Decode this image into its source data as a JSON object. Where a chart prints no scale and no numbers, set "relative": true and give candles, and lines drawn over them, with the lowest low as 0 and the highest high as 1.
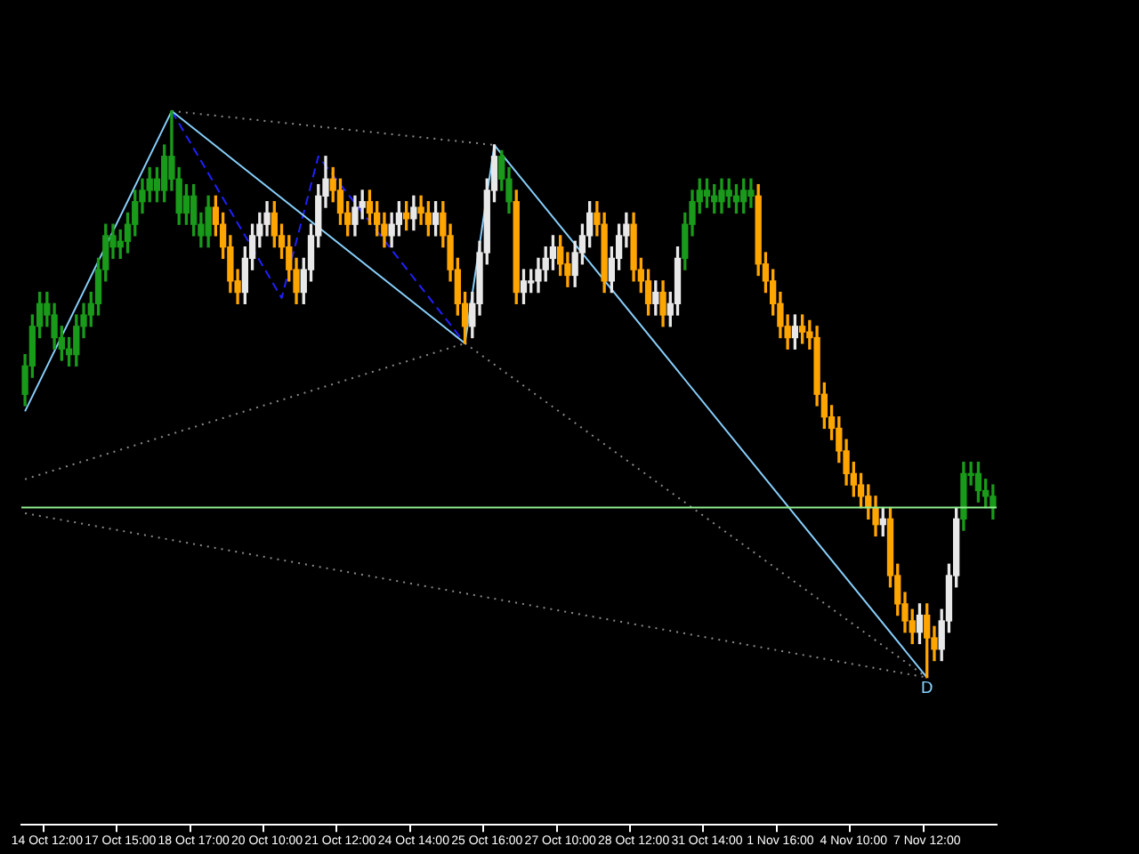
{
  "chart_data": {
    "type": "candlestick",
    "relative": true,
    "legend": false,
    "grid": false,
    "categories": [
      null,
      null,
      null,
      "14 Oct 12:00",
      null,
      null,
      null,
      null,
      null,
      null,
      null,
      null,
      null,
      "17 Oct 15:00",
      null,
      null,
      null,
      null,
      null,
      null,
      null,
      null,
      null,
      "18 Oct 17:00",
      null,
      null,
      null,
      null,
      null,
      null,
      null,
      null,
      null,
      "20 Oct 10:00",
      null,
      null,
      null,
      null,
      null,
      null,
      null,
      null,
      null,
      "21 Oct 12:00",
      null,
      null,
      null,
      null,
      null,
      null,
      null,
      null,
      null,
      "24 Oct 14:00",
      null,
      null,
      null,
      null,
      null,
      null,
      null,
      null,
      null,
      "25 Oct 16:00",
      null,
      null,
      null,
      null,
      null,
      null,
      null,
      null,
      null,
      "27 Oct 10:00",
      null,
      null,
      null,
      null,
      null,
      null,
      null,
      null,
      null,
      "28 Oct 12:00",
      null,
      null,
      null,
      null,
      null,
      null,
      null,
      null,
      null,
      "31 Oct 14:00",
      null,
      null,
      null,
      null,
      null,
      null,
      null,
      null,
      null,
      "1 Nov 16:00",
      null,
      null,
      null,
      null,
      null,
      null,
      null,
      null,
      null,
      "4 Nov 10:00",
      null,
      null,
      null,
      null,
      null,
      null,
      null,
      null,
      null,
      "7 Nov 12:00",
      null,
      null,
      null,
      null,
      null,
      null,
      null,
      null,
      null
    ],
    "ohlc": [
      [
        0.5,
        0.57,
        0.48,
        0.55
      ],
      [
        0.55,
        0.64,
        0.53,
        0.62
      ],
      [
        0.62,
        0.68,
        0.6,
        0.66
      ],
      [
        0.66,
        0.68,
        0.62,
        0.64
      ],
      [
        0.64,
        0.66,
        0.58,
        0.6
      ],
      [
        0.6,
        0.62,
        0.56,
        0.58
      ],
      [
        0.58,
        0.6,
        0.55,
        0.57
      ],
      [
        0.57,
        0.64,
        0.55,
        0.62
      ],
      [
        0.62,
        0.66,
        0.6,
        0.64
      ],
      [
        0.64,
        0.68,
        0.62,
        0.66
      ],
      [
        0.66,
        0.74,
        0.64,
        0.72
      ],
      [
        0.72,
        0.8,
        0.7,
        0.78
      ],
      [
        0.78,
        0.8,
        0.74,
        0.76
      ],
      [
        0.76,
        0.79,
        0.74,
        0.77
      ],
      [
        0.77,
        0.82,
        0.75,
        0.8
      ],
      [
        0.8,
        0.86,
        0.78,
        0.84
      ],
      [
        0.84,
        0.88,
        0.82,
        0.86
      ],
      [
        0.86,
        0.9,
        0.84,
        0.88
      ],
      [
        0.88,
        0.9,
        0.84,
        0.86
      ],
      [
        0.86,
        0.94,
        0.84,
        0.92
      ],
      [
        0.92,
        1.0,
        0.86,
        0.88
      ],
      [
        0.88,
        0.9,
        0.8,
        0.82
      ],
      [
        0.82,
        0.87,
        0.8,
        0.85
      ],
      [
        0.85,
        0.87,
        0.78,
        0.8
      ],
      [
        0.8,
        0.82,
        0.76,
        0.78
      ],
      [
        0.78,
        0.85,
        0.76,
        0.83
      ],
      [
        0.83,
        0.85,
        0.78,
        0.8
      ],
      [
        0.8,
        0.82,
        0.74,
        0.76
      ],
      [
        0.76,
        0.78,
        0.68,
        0.7
      ],
      [
        0.7,
        0.72,
        0.66,
        0.68
      ],
      [
        0.68,
        0.76,
        0.66,
        0.74
      ],
      [
        0.74,
        0.8,
        0.72,
        0.78
      ],
      [
        0.78,
        0.82,
        0.76,
        0.8
      ],
      [
        0.8,
        0.84,
        0.78,
        0.82
      ],
      [
        0.82,
        0.84,
        0.76,
        0.78
      ],
      [
        0.78,
        0.8,
        0.74,
        0.76
      ],
      [
        0.76,
        0.78,
        0.7,
        0.72
      ],
      [
        0.72,
        0.74,
        0.66,
        0.68
      ],
      [
        0.68,
        0.74,
        0.66,
        0.72
      ],
      [
        0.72,
        0.8,
        0.7,
        0.78
      ],
      [
        0.78,
        0.87,
        0.76,
        0.85
      ],
      [
        0.85,
        0.92,
        0.83,
        0.88
      ],
      [
        0.88,
        0.9,
        0.84,
        0.86
      ],
      [
        0.86,
        0.88,
        0.8,
        0.82
      ],
      [
        0.82,
        0.84,
        0.78,
        0.8
      ],
      [
        0.8,
        0.85,
        0.78,
        0.83
      ],
      [
        0.83,
        0.86,
        0.81,
        0.84
      ],
      [
        0.84,
        0.86,
        0.8,
        0.82
      ],
      [
        0.82,
        0.84,
        0.78,
        0.8
      ],
      [
        0.8,
        0.82,
        0.76,
        0.78
      ],
      [
        0.78,
        0.82,
        0.76,
        0.8
      ],
      [
        0.8,
        0.84,
        0.78,
        0.82
      ],
      [
        0.82,
        0.84,
        0.79,
        0.81
      ],
      [
        0.81,
        0.85,
        0.79,
        0.83
      ],
      [
        0.83,
        0.85,
        0.8,
        0.82
      ],
      [
        0.82,
        0.84,
        0.78,
        0.8
      ],
      [
        0.8,
        0.84,
        0.78,
        0.82
      ],
      [
        0.82,
        0.84,
        0.76,
        0.78
      ],
      [
        0.78,
        0.8,
        0.7,
        0.72
      ],
      [
        0.72,
        0.74,
        0.64,
        0.66
      ],
      [
        0.66,
        0.68,
        0.59,
        0.62
      ],
      [
        0.62,
        0.68,
        0.6,
        0.66
      ],
      [
        0.66,
        0.77,
        0.64,
        0.75
      ],
      [
        0.75,
        0.88,
        0.73,
        0.86
      ],
      [
        0.86,
        0.94,
        0.84,
        0.92
      ],
      [
        0.92,
        0.93,
        0.86,
        0.88
      ],
      [
        0.88,
        0.9,
        0.82,
        0.84
      ],
      [
        0.84,
        0.86,
        0.66,
        0.68
      ],
      [
        0.68,
        0.72,
        0.66,
        0.7
      ],
      [
        0.7,
        0.72,
        0.68,
        0.7
      ],
      [
        0.7,
        0.74,
        0.68,
        0.72
      ],
      [
        0.72,
        0.76,
        0.7,
        0.74
      ],
      [
        0.74,
        0.78,
        0.72,
        0.76
      ],
      [
        0.76,
        0.78,
        0.71,
        0.73
      ],
      [
        0.73,
        0.75,
        0.69,
        0.71
      ],
      [
        0.71,
        0.77,
        0.69,
        0.75
      ],
      [
        0.75,
        0.8,
        0.73,
        0.78
      ],
      [
        0.78,
        0.84,
        0.76,
        0.82
      ],
      [
        0.82,
        0.84,
        0.78,
        0.8
      ],
      [
        0.8,
        0.82,
        0.68,
        0.7
      ],
      [
        0.7,
        0.76,
        0.68,
        0.74
      ],
      [
        0.74,
        0.8,
        0.72,
        0.78
      ],
      [
        0.78,
        0.82,
        0.76,
        0.8
      ],
      [
        0.8,
        0.82,
        0.7,
        0.72
      ],
      [
        0.72,
        0.74,
        0.68,
        0.7
      ],
      [
        0.7,
        0.72,
        0.64,
        0.66
      ],
      [
        0.66,
        0.7,
        0.64,
        0.68
      ],
      [
        0.68,
        0.7,
        0.62,
        0.64
      ],
      [
        0.64,
        0.68,
        0.62,
        0.66
      ],
      [
        0.66,
        0.76,
        0.64,
        0.74
      ],
      [
        0.74,
        0.82,
        0.72,
        0.8
      ],
      [
        0.8,
        0.86,
        0.78,
        0.84
      ],
      [
        0.84,
        0.88,
        0.82,
        0.86
      ],
      [
        0.86,
        0.88,
        0.83,
        0.85
      ],
      [
        0.85,
        0.87,
        0.82,
        0.84
      ],
      [
        0.84,
        0.88,
        0.82,
        0.86
      ],
      [
        0.86,
        0.88,
        0.83,
        0.85
      ],
      [
        0.85,
        0.87,
        0.82,
        0.84
      ],
      [
        0.84,
        0.88,
        0.82,
        0.86
      ],
      [
        0.86,
        0.88,
        0.83,
        0.85
      ],
      [
        0.85,
        0.87,
        0.71,
        0.73
      ],
      [
        0.73,
        0.75,
        0.68,
        0.7
      ],
      [
        0.7,
        0.72,
        0.64,
        0.66
      ],
      [
        0.66,
        0.68,
        0.6,
        0.62
      ],
      [
        0.62,
        0.64,
        0.58,
        0.6
      ],
      [
        0.6,
        0.64,
        0.58,
        0.62
      ],
      [
        0.62,
        0.64,
        0.59,
        0.61
      ],
      [
        0.61,
        0.63,
        0.58,
        0.6
      ],
      [
        0.6,
        0.62,
        0.48,
        0.5
      ],
      [
        0.5,
        0.52,
        0.44,
        0.46
      ],
      [
        0.46,
        0.48,
        0.42,
        0.44
      ],
      [
        0.44,
        0.46,
        0.38,
        0.4
      ],
      [
        0.4,
        0.42,
        0.34,
        0.36
      ],
      [
        0.36,
        0.38,
        0.32,
        0.34
      ],
      [
        0.34,
        0.36,
        0.3,
        0.32
      ],
      [
        0.32,
        0.34,
        0.28,
        0.3
      ],
      [
        0.3,
        0.32,
        0.25,
        0.27
      ],
      [
        0.27,
        0.3,
        0.25,
        0.28
      ],
      [
        0.28,
        0.3,
        0.16,
        0.18
      ],
      [
        0.18,
        0.2,
        0.11,
        0.13
      ],
      [
        0.13,
        0.15,
        0.08,
        0.1
      ],
      [
        0.1,
        0.12,
        0.06,
        0.08
      ],
      [
        0.08,
        0.13,
        0.06,
        0.11
      ],
      [
        0.11,
        0.13,
        0.0,
        0.07
      ],
      [
        0.07,
        0.09,
        0.03,
        0.05
      ],
      [
        0.05,
        0.12,
        0.03,
        0.1
      ],
      [
        0.1,
        0.2,
        0.08,
        0.18
      ],
      [
        0.18,
        0.3,
        0.16,
        0.28
      ],
      [
        0.28,
        0.38,
        0.26,
        0.36
      ],
      [
        0.36,
        0.38,
        0.34,
        0.36
      ],
      [
        0.36,
        0.38,
        0.31,
        0.33
      ],
      [
        0.33,
        0.35,
        0.3,
        0.32
      ],
      [
        0.32,
        0.34,
        0.28,
        0.3
      ]
    ],
    "colors": [
      "#1a9a1a",
      "#1a9a1a",
      "#1a9a1a",
      "#1a9a1a",
      "#1a9a1a",
      "#1a9a1a",
      "#1a9a1a",
      "#1a9a1a",
      "#1a9a1a",
      "#1a9a1a",
      "#1a9a1a",
      "#1a9a1a",
      "#1a9a1a",
      "#1a9a1a",
      "#1a9a1a",
      "#1a9a1a",
      "#1a9a1a",
      "#1a9a1a",
      "#1a9a1a",
      "#1a9a1a",
      "#1a9a1a",
      "#1a9a1a",
      "#1a9a1a",
      "#1a9a1a",
      "#1a9a1a",
      "#1a9a1a",
      "#ffa500",
      "#ffa500",
      "#ffa500",
      "#ffa500",
      "#e8e8e8",
      "#e8e8e8",
      "#e8e8e8",
      "#e8e8e8",
      "#ffa500",
      "#ffa500",
      "#ffa500",
      "#ffa500",
      "#e8e8e8",
      "#e8e8e8",
      "#e8e8e8",
      "#e8e8e8",
      "#ffa500",
      "#ffa500",
      "#ffa500",
      "#e8e8e8",
      "#e8e8e8",
      "#ffa500",
      "#ffa500",
      "#ffa500",
      "#e8e8e8",
      "#e8e8e8",
      "#ffa500",
      "#e8e8e8",
      "#ffa500",
      "#ffa500",
      "#e8e8e8",
      "#ffa500",
      "#ffa500",
      "#ffa500",
      "#ffa500",
      "#e8e8e8",
      "#e8e8e8",
      "#e8e8e8",
      "#e8e8e8",
      "#1a9a1a",
      "#1a9a1a",
      "#ffa500",
      "#e8e8e8",
      "#e8e8e8",
      "#e8e8e8",
      "#e8e8e8",
      "#e8e8e8",
      "#ffa500",
      "#ffa500",
      "#e8e8e8",
      "#e8e8e8",
      "#e8e8e8",
      "#ffa500",
      "#ffa500",
      "#e8e8e8",
      "#e8e8e8",
      "#e8e8e8",
      "#ffa500",
      "#ffa500",
      "#ffa500",
      "#e8e8e8",
      "#ffa500",
      "#e8e8e8",
      "#e8e8e8",
      "#1a9a1a",
      "#1a9a1a",
      "#1a9a1a",
      "#1a9a1a",
      "#1a9a1a",
      "#1a9a1a",
      "#1a9a1a",
      "#1a9a1a",
      "#1a9a1a",
      "#1a9a1a",
      "#ffa500",
      "#ffa500",
      "#ffa500",
      "#ffa500",
      "#ffa500",
      "#e8e8e8",
      "#ffa500",
      "#ffa500",
      "#ffa500",
      "#ffa500",
      "#ffa500",
      "#ffa500",
      "#ffa500",
      "#ffa500",
      "#ffa500",
      "#ffa500",
      "#ffa500",
      "#e8e8e8",
      "#ffa500",
      "#ffa500",
      "#ffa500",
      "#ffa500",
      "#e8e8e8",
      "#ffa500",
      "#ffa500",
      "#e8e8e8",
      "#e8e8e8",
      "#e8e8e8",
      "#1a9a1a",
      "#1a9a1a",
      "#1a9a1a",
      "#1a9a1a",
      "#1a9a1a"
    ],
    "series": [
      {
        "type": "line",
        "color": "#87cefa",
        "line_style": "solid",
        "values": [
          0.47,
          null,
          null,
          null,
          null,
          null,
          null,
          null,
          null,
          null,
          null,
          null,
          null,
          null,
          null,
          null,
          null,
          null,
          null,
          null,
          1.0,
          null,
          null,
          null,
          null,
          null,
          null,
          null,
          null,
          null,
          null,
          null,
          null,
          null,
          null,
          null,
          null,
          null,
          null,
          null,
          null,
          null,
          null,
          null,
          null,
          null,
          null,
          null,
          null,
          null,
          null,
          null,
          null,
          null,
          null,
          null,
          null,
          null,
          null,
          null,
          0.59,
          null,
          null,
          null,
          0.94,
          null,
          null,
          null,
          null,
          null,
          null,
          null,
          null,
          null,
          null,
          null,
          null,
          null,
          null,
          null,
          null,
          null,
          null,
          null,
          null,
          null,
          null,
          null,
          null,
          null,
          null,
          null,
          null,
          null,
          null,
          null,
          null,
          null,
          null,
          null,
          null,
          null,
          null,
          null,
          null,
          null,
          null,
          null,
          null,
          null,
          null,
          null,
          null,
          null,
          null,
          null,
          null,
          null,
          null,
          null,
          null,
          null,
          null,
          0.0,
          null,
          null,
          null,
          null,
          null,
          null,
          null,
          null,
          null
        ]
      },
      {
        "type": "line",
        "color": "#2020ff",
        "line_style": "dashed",
        "values": [
          null,
          null,
          null,
          null,
          null,
          null,
          null,
          null,
          null,
          null,
          null,
          null,
          null,
          null,
          null,
          null,
          null,
          null,
          null,
          null,
          1.0,
          null,
          null,
          null,
          null,
          null,
          null,
          null,
          null,
          null,
          null,
          null,
          null,
          null,
          null,
          0.67,
          null,
          null,
          null,
          null,
          0.92,
          null,
          null,
          null,
          null,
          null,
          null,
          null,
          null,
          null,
          null,
          null,
          null,
          null,
          null,
          null,
          null,
          null,
          null,
          null,
          0.59,
          null,
          null,
          null,
          null,
          null,
          null,
          null,
          null,
          null,
          null,
          null,
          null,
          null,
          null,
          null,
          null,
          null,
          null,
          null,
          null,
          null,
          null,
          null,
          null,
          null,
          null,
          null,
          null,
          null,
          null,
          null,
          null,
          null,
          null,
          null,
          null,
          null,
          null,
          null,
          null,
          null,
          null,
          null,
          null,
          null,
          null,
          null,
          null,
          null,
          null,
          null,
          null,
          null,
          null,
          null,
          null,
          null,
          null,
          null,
          null,
          null,
          null,
          null,
          null,
          null,
          null,
          null,
          null,
          null,
          null,
          null,
          null
        ]
      },
      {
        "type": "line",
        "color": "#8a8a8a",
        "line_style": "dotted",
        "values": [
          null,
          null,
          null,
          null,
          null,
          null,
          null,
          null,
          null,
          null,
          null,
          null,
          null,
          null,
          null,
          null,
          null,
          null,
          null,
          null,
          1.0,
          null,
          null,
          null,
          null,
          null,
          null,
          null,
          null,
          null,
          null,
          null,
          null,
          null,
          null,
          null,
          null,
          null,
          null,
          null,
          null,
          null,
          null,
          null,
          null,
          null,
          null,
          null,
          null,
          null,
          null,
          null,
          null,
          null,
          null,
          null,
          null,
          null,
          null,
          null,
          null,
          null,
          null,
          null,
          0.94,
          null,
          null,
          null,
          null,
          null,
          null,
          null,
          null,
          null,
          null,
          null,
          null,
          null,
          null,
          null,
          null,
          null,
          null,
          null,
          null,
          null,
          null,
          null,
          null,
          null,
          null,
          null,
          null,
          null,
          null,
          null,
          null,
          null,
          null,
          null,
          null,
          null,
          null,
          null,
          null,
          null,
          null,
          null,
          null,
          null,
          null,
          null,
          null,
          null,
          null,
          null,
          null,
          null,
          null,
          null,
          null,
          null,
          null,
          null,
          null,
          null,
          null,
          null,
          null,
          null,
          null,
          null,
          null
        ]
      },
      {
        "type": "line",
        "color": "#8a8a8a",
        "line_style": "dotted",
        "values": [
          0.35,
          null,
          null,
          null,
          null,
          null,
          null,
          null,
          null,
          null,
          null,
          null,
          null,
          null,
          null,
          null,
          null,
          null,
          null,
          null,
          null,
          null,
          null,
          null,
          null,
          null,
          null,
          null,
          null,
          null,
          null,
          null,
          null,
          null,
          null,
          null,
          null,
          null,
          null,
          null,
          null,
          null,
          null,
          null,
          null,
          null,
          null,
          null,
          null,
          null,
          null,
          null,
          null,
          null,
          null,
          null,
          null,
          null,
          null,
          null,
          0.59,
          null,
          null,
          null,
          null,
          null,
          null,
          null,
          null,
          null,
          null,
          null,
          null,
          null,
          null,
          null,
          null,
          null,
          null,
          null,
          null,
          null,
          null,
          null,
          null,
          null,
          null,
          null,
          null,
          null,
          null,
          null,
          null,
          null,
          null,
          null,
          null,
          null,
          null,
          null,
          null,
          null,
          null,
          null,
          null,
          null,
          null,
          null,
          null,
          null,
          null,
          null,
          null,
          null,
          null,
          null,
          null,
          null,
          null,
          null,
          null,
          null,
          null,
          null,
          null,
          null,
          null,
          null,
          null,
          null,
          null,
          null,
          null
        ]
      },
      {
        "type": "line",
        "color": "#8a8a8a",
        "line_style": "dotted",
        "values": [
          null,
          null,
          null,
          null,
          null,
          null,
          null,
          null,
          null,
          null,
          null,
          null,
          null,
          null,
          null,
          null,
          null,
          null,
          null,
          null,
          null,
          null,
          null,
          null,
          null,
          null,
          null,
          null,
          null,
          null,
          null,
          null,
          null,
          null,
          null,
          null,
          null,
          null,
          null,
          null,
          null,
          null,
          null,
          null,
          null,
          null,
          null,
          null,
          null,
          null,
          null,
          null,
          null,
          null,
          null,
          null,
          null,
          null,
          null,
          null,
          0.59,
          null,
          null,
          null,
          null,
          null,
          null,
          null,
          null,
          null,
          null,
          null,
          null,
          null,
          null,
          null,
          null,
          null,
          null,
          null,
          null,
          null,
          null,
          null,
          null,
          null,
          null,
          null,
          null,
          null,
          null,
          null,
          null,
          null,
          null,
          null,
          null,
          null,
          null,
          null,
          null,
          null,
          null,
          null,
          null,
          null,
          null,
          null,
          null,
          null,
          null,
          null,
          null,
          null,
          null,
          null,
          null,
          null,
          null,
          null,
          null,
          null,
          null,
          0.0,
          null,
          null,
          null,
          null,
          null,
          null,
          null,
          null,
          null
        ]
      },
      {
        "type": "line",
        "color": "#8a8a8a",
        "line_style": "dotted",
        "values": [
          0.29,
          null,
          null,
          null,
          null,
          null,
          null,
          null,
          null,
          null,
          null,
          null,
          null,
          null,
          null,
          null,
          null,
          null,
          null,
          null,
          null,
          null,
          null,
          null,
          null,
          null,
          null,
          null,
          null,
          null,
          null,
          null,
          null,
          null,
          null,
          null,
          null,
          null,
          null,
          null,
          null,
          null,
          null,
          null,
          null,
          null,
          null,
          null,
          null,
          null,
          null,
          null,
          null,
          null,
          null,
          null,
          null,
          null,
          null,
          null,
          null,
          null,
          null,
          null,
          null,
          null,
          null,
          null,
          null,
          null,
          null,
          null,
          null,
          null,
          null,
          null,
          null,
          null,
          null,
          null,
          null,
          null,
          null,
          null,
          null,
          null,
          null,
          null,
          null,
          null,
          null,
          null,
          null,
          null,
          null,
          null,
          null,
          null,
          null,
          null,
          null,
          null,
          null,
          null,
          null,
          null,
          null,
          null,
          null,
          null,
          null,
          null,
          null,
          null,
          null,
          null,
          null,
          null,
          null,
          null,
          null,
          null,
          null,
          0.0,
          null,
          null,
          null,
          null,
          null,
          null,
          null,
          null,
          null
        ]
      }
    ],
    "ref_lines": [
      {
        "axis": "y",
        "value": 0.3,
        "color": "#90ee90"
      }
    ],
    "annotations": [
      {
        "text": "D",
        "y": 0.0
      }
    ]
  }
}
